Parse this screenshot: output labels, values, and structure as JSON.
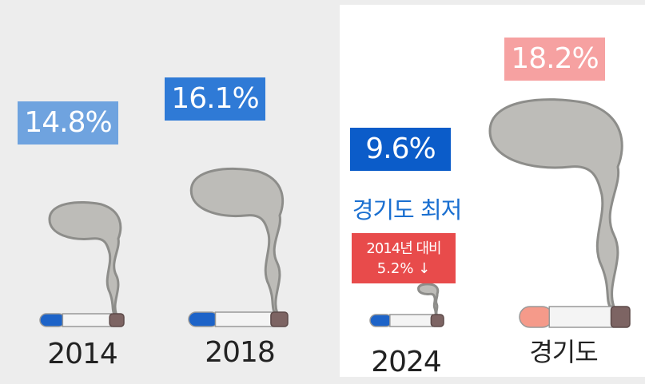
{
  "chart_data": {
    "type": "pictogram",
    "categories": [
      "2014",
      "2018",
      "2024",
      "경기도"
    ],
    "values": [
      14.8,
      16.1,
      9.6,
      18.2
    ],
    "value_labels": [
      "14.8%",
      "16.1%",
      "9.6%",
      "18.2%"
    ],
    "colors": [
      "#6fa3df",
      "#2f7ad6",
      "#0b5cc9",
      "#f6a1a1"
    ],
    "annotations": [
      "경기도 최저",
      "2014년 대비",
      "5.2%  ↓"
    ]
  }
}
